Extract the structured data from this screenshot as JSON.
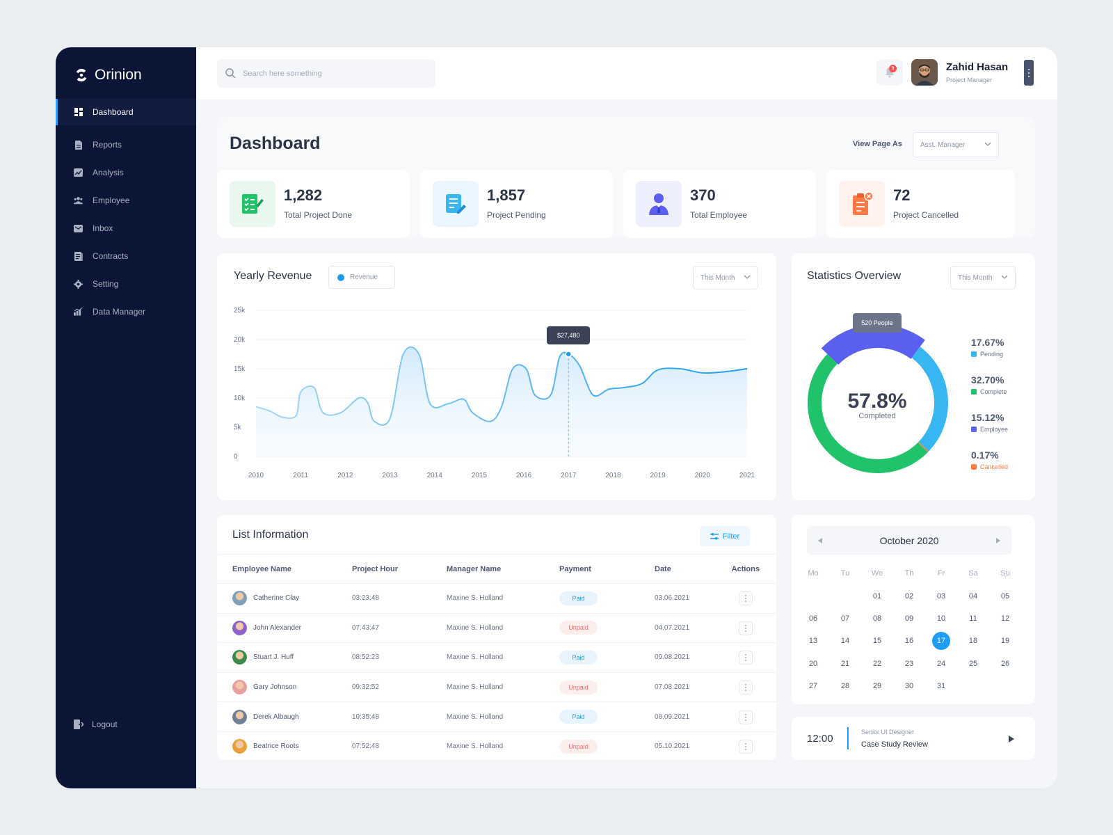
{
  "app": {
    "name": "Orinion"
  },
  "sidebar": {
    "items": [
      {
        "label": "Dashboard",
        "icon": "dashboard-icon"
      },
      {
        "label": "Reports",
        "icon": "file-icon"
      },
      {
        "label": "Analysis",
        "icon": "chart-icon"
      },
      {
        "label": "Employee",
        "icon": "users-icon"
      },
      {
        "label": "Inbox",
        "icon": "mail-icon"
      },
      {
        "label": "Contracts",
        "icon": "contract-icon"
      },
      {
        "label": "Setting",
        "icon": "gear-icon"
      },
      {
        "label": "Data Manager",
        "icon": "bar-chart-icon"
      }
    ],
    "logout": "Logout"
  },
  "topbar": {
    "search_placeholder": "Search here something",
    "notifications": "9",
    "user_name": "Zahid Hasan",
    "user_role": "Project Manager"
  },
  "header": {
    "title": "Dashboard",
    "view_as_label": "View Page As",
    "view_as_value": "Asst. Manager"
  },
  "stats": [
    {
      "value": "1,282",
      "label": "Total Project Done",
      "color": "#20c26a"
    },
    {
      "value": "1,857",
      "label": "Project Pending",
      "color": "#38b6f1"
    },
    {
      "value": "370",
      "label": "Total Employee",
      "color": "#5a5ff0"
    },
    {
      "value": "72",
      "label": "Project Cancelled",
      "color": "#ff7a45"
    }
  ],
  "revenue": {
    "title": "Yearly Revenue",
    "legend": "Revenue",
    "period": "This Month",
    "tooltip": "$27,480"
  },
  "overview": {
    "title": "Statistics Overview",
    "period": "This Month",
    "tooltip": "520 People",
    "center_value": "57.8%",
    "center_label": "Completed",
    "legend": [
      {
        "value": "17.67%",
        "label": "Pending",
        "color": "#38b6f1"
      },
      {
        "value": "32.70%",
        "label": "Complete",
        "color": "#20c26a"
      },
      {
        "value": "15.12%",
        "label": "Employee",
        "color": "#5a5ff0"
      },
      {
        "value": "0.17%",
        "label": "Cancelled",
        "color": "#ff7a45"
      }
    ]
  },
  "chart_data": [
    {
      "type": "area",
      "title": "Yearly Revenue",
      "x": [
        "2010",
        "2011",
        "2012",
        "2013",
        "2014",
        "2015",
        "2016",
        "2017",
        "2018",
        "2019",
        "2020",
        "2021"
      ],
      "series": [
        {
          "name": "Revenue",
          "points": [
            [
              2010.0,
              8500
            ],
            [
              2010.3,
              7800
            ],
            [
              2010.6,
              6700
            ],
            [
              2010.9,
              7000
            ],
            [
              2011.0,
              11000
            ],
            [
              2011.3,
              11800
            ],
            [
              2011.5,
              7500
            ],
            [
              2011.9,
              7500
            ],
            [
              2012.3,
              10000
            ],
            [
              2012.5,
              9200
            ],
            [
              2012.65,
              6000
            ],
            [
              2013.0,
              6500
            ],
            [
              2013.3,
              17500
            ],
            [
              2013.65,
              17500
            ],
            [
              2013.9,
              9000
            ],
            [
              2014.3,
              9000
            ],
            [
              2014.65,
              9800
            ],
            [
              2014.85,
              7500
            ],
            [
              2015.25,
              6000
            ],
            [
              2015.5,
              8500
            ],
            [
              2015.75,
              15000
            ],
            [
              2016.05,
              15000
            ],
            [
              2016.25,
              10500
            ],
            [
              2016.6,
              10500
            ],
            [
              2016.8,
              17000
            ],
            [
              2017.0,
              17500
            ],
            [
              2017.25,
              15500
            ],
            [
              2017.55,
              10500
            ],
            [
              2017.9,
              11500
            ],
            [
              2018.25,
              11800
            ],
            [
              2018.65,
              12500
            ],
            [
              2019.0,
              14800
            ],
            [
              2019.5,
              15000
            ],
            [
              2020.0,
              14300
            ],
            [
              2020.5,
              14500
            ],
            [
              2021.0,
              15000
            ]
          ]
        }
      ],
      "yticks": [
        0,
        5000,
        10000,
        15000,
        20000,
        25000
      ],
      "ytick_labels": [
        "0",
        "5k",
        "10k",
        "15k",
        "20k",
        "25k"
      ],
      "ylim": [
        0,
        25000
      ],
      "xlim": [
        2010,
        2021
      ],
      "legend_position": "top"
    },
    {
      "type": "pie",
      "title": "Statistics Overview",
      "slices": [
        {
          "name": "Employee",
          "value": 15.12
        },
        {
          "name": "Pending",
          "value": 17.67
        },
        {
          "name": "Cancelled",
          "value": 0.17
        },
        {
          "name": "Complete",
          "value": 32.7
        }
      ]
    }
  ],
  "list": {
    "title": "List Information",
    "filter_label": "Filter",
    "columns": [
      "Employee Name",
      "Project Hour",
      "Manager Name",
      "Payment",
      "Date",
      "Actions"
    ],
    "rows": [
      {
        "name": "Catherine Clay",
        "hour": "03:23:48",
        "manager": "Maxine S. Holland",
        "payment": "Paid",
        "date": "03.06.2021",
        "avatar": "#7fa0b8"
      },
      {
        "name": "John Alexander",
        "hour": "07:43:47",
        "manager": "Maxine S. Holland",
        "payment": "Unpaid",
        "date": "04.07.2021",
        "avatar": "#8c63c9"
      },
      {
        "name": "Stuart J. Huff",
        "hour": "08:52:23",
        "manager": "Maxine S. Holland",
        "payment": "Paid",
        "date": "09.08.2021",
        "avatar": "#3d8b4a"
      },
      {
        "name": "Gary Johnson",
        "hour": "09:32:52",
        "manager": "Maxine S. Holland",
        "payment": "Unpaid",
        "date": "07.08.2021",
        "avatar": "#e8a0a0"
      },
      {
        "name": "Derek Albaugh",
        "hour": "10:35:48",
        "manager": "Maxine S. Holland",
        "payment": "Paid",
        "date": "08.09.2021",
        "avatar": "#6f7f95"
      },
      {
        "name": "Beatrice Roots",
        "hour": "07:52:48",
        "manager": "Maxine S. Holland",
        "payment": "Unpaid",
        "date": "05.10.2021",
        "avatar": "#e6a23c"
      }
    ]
  },
  "calendar": {
    "month": "October 2020",
    "days_of_week": [
      "Mo",
      "Tu",
      "We",
      "Th",
      "Fr",
      "Sa",
      "Su"
    ],
    "weeks": [
      [
        "",
        "",
        "01",
        "02",
        "03",
        "04",
        "05"
      ],
      [
        "06",
        "07",
        "08",
        "09",
        "10",
        "11",
        "12"
      ],
      [
        "13",
        "14",
        "15",
        "16",
        "17",
        "18",
        "19"
      ],
      [
        "20",
        "21",
        "22",
        "23",
        "24",
        "25",
        "26"
      ],
      [
        "27",
        "28",
        "29",
        "30",
        "31",
        "",
        ""
      ]
    ],
    "selected": "17"
  },
  "event": {
    "time": "12:00",
    "role": "Senior UI Designer",
    "title": "Case Study Review"
  }
}
